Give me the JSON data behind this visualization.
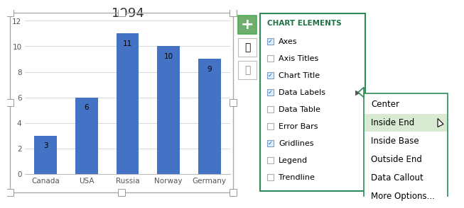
{
  "title": "1994",
  "categories": [
    "Canada",
    "USA",
    "Russia",
    "Norway",
    "Germany"
  ],
  "values": [
    3,
    6,
    11,
    10,
    9
  ],
  "bar_color": "#4472C4",
  "ylim": [
    0,
    12
  ],
  "yticks": [
    0,
    2,
    4,
    6,
    8,
    10,
    12
  ],
  "chart_elements_title": "CHART ELEMENTS",
  "chart_elements_title_color": "#1E7145",
  "check_color": "#2060A0",
  "chart_items": [
    {
      "label": "Axes",
      "checked": true,
      "has_arrow": false
    },
    {
      "label": "Axis Titles",
      "checked": false,
      "has_arrow": false
    },
    {
      "label": "Chart Title",
      "checked": true,
      "has_arrow": false
    },
    {
      "label": "Data Labels",
      "checked": true,
      "has_arrow": true
    },
    {
      "label": "Data Table",
      "checked": false,
      "has_arrow": false
    },
    {
      "label": "Error Bars",
      "checked": false,
      "has_arrow": false
    },
    {
      "label": "Gridlines",
      "checked": true,
      "has_arrow": false
    },
    {
      "label": "Legend",
      "checked": false,
      "has_arrow": false
    },
    {
      "label": "Trendline",
      "checked": false,
      "has_arrow": false
    }
  ],
  "submenu_items": [
    "Center",
    "Inside End",
    "Inside Base",
    "Outside End",
    "Data Callout",
    "More Options..."
  ],
  "submenu_highlighted": "Inside End",
  "submenu_highlight_color": "#D9EAD3",
  "plus_button_color": "#6FAE6F",
  "plus_button_border": "#4CAF50",
  "chart_border_color": "#BBBBBB",
  "chart_bg": "#FFFFFF",
  "fig_bg": "#FFFFFF",
  "panel_border_color": "#2E8B57",
  "submenu_border_color": "#2E8B57"
}
